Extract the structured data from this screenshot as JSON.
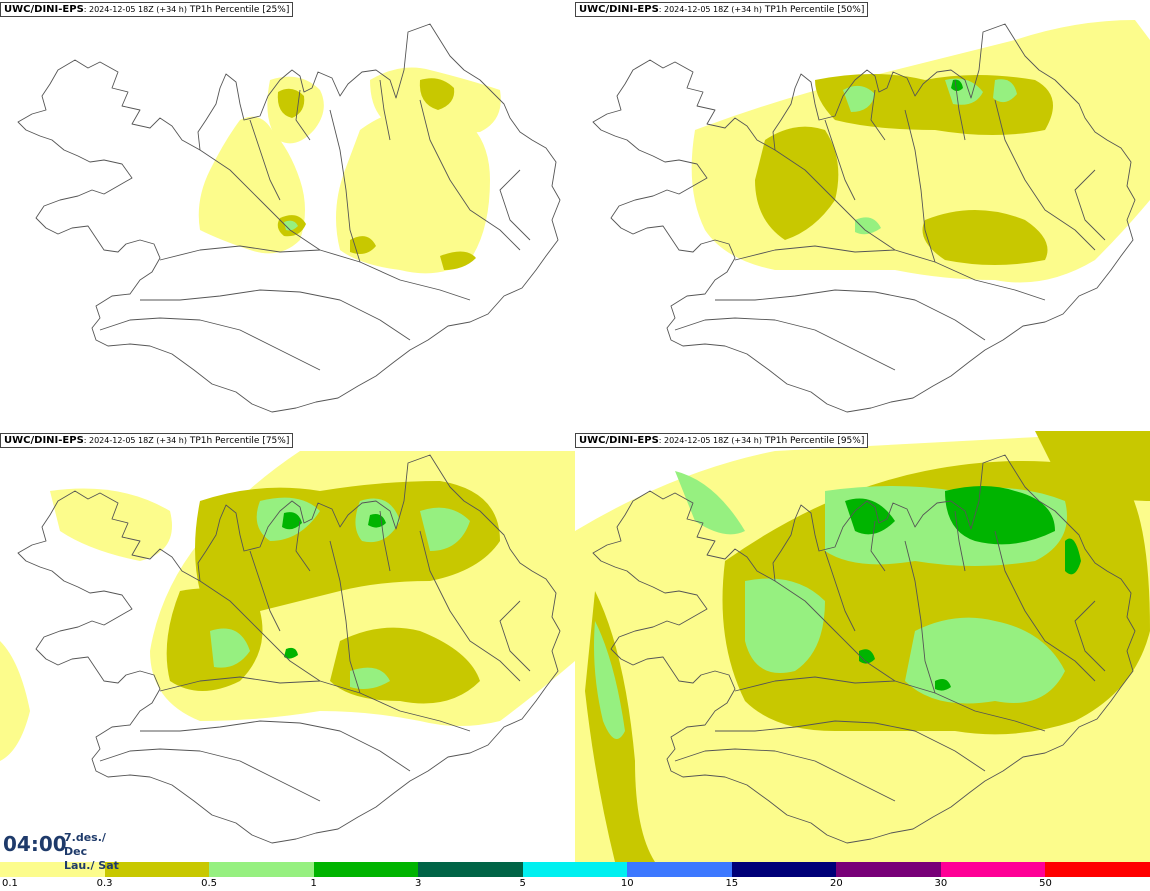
{
  "panels": [
    {
      "model": "UWC/DINI-EPS",
      "run": ": 2024-12-05 18Z (+34 h)",
      "field": " TP1h Percentile [25%]"
    },
    {
      "model": "UWC/DINI-EPS",
      "run": ": 2024-12-05 18Z (+34 h)",
      "field": " TP1h Percentile [50%]"
    },
    {
      "model": "UWC/DINI-EPS",
      "run": ": 2024-12-05 18Z (+34 h)",
      "field": " TP1h Percentile [75%]"
    },
    {
      "model": "UWC/DINI-EPS",
      "run": ": 2024-12-05 18Z (+34 h)",
      "field": " TP1h Percentile [95%]"
    }
  ],
  "valid_time": {
    "time": "04:00",
    "date_line1": "7.des./ Dec",
    "date_line2": "Lau./ Sat"
  },
  "legend": {
    "colors": [
      "#fcfc8c",
      "#c8c800",
      "#96f080",
      "#00b400",
      "#006446",
      "#00f0f0",
      "#3c78ff",
      "#000078",
      "#780078",
      "#ff0096",
      "#ff0000"
    ],
    "labels": [
      "0.1",
      "0.3",
      "0.5",
      "1",
      "3",
      "5",
      "10",
      "15",
      "20",
      "30",
      "50"
    ]
  },
  "colors": {
    "land_outline": "#555555",
    "title_text": "#1e3a6a"
  }
}
